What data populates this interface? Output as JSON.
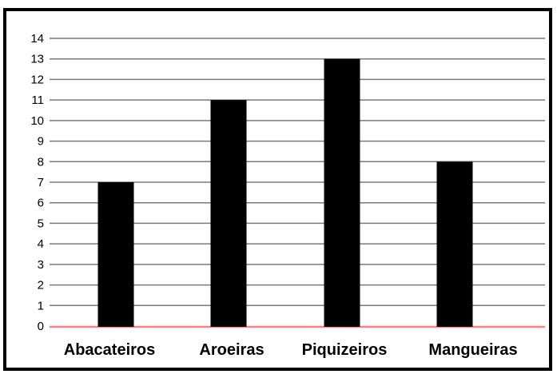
{
  "chart_data": {
    "type": "bar",
    "categories": [
      "Abacateiros",
      "Aroeiras",
      "Piquizeiros",
      "Mangueiras"
    ],
    "values": [
      7,
      11,
      13,
      8
    ],
    "ylim": [
      0,
      14
    ],
    "yticks": [
      0,
      1,
      2,
      3,
      4,
      5,
      6,
      7,
      8,
      9,
      10,
      11,
      12,
      13,
      14
    ],
    "grid": true,
    "colors": {
      "bar": "#000000",
      "grid": "#7a7a7a",
      "baseline_highlight": "#ff8080"
    }
  }
}
